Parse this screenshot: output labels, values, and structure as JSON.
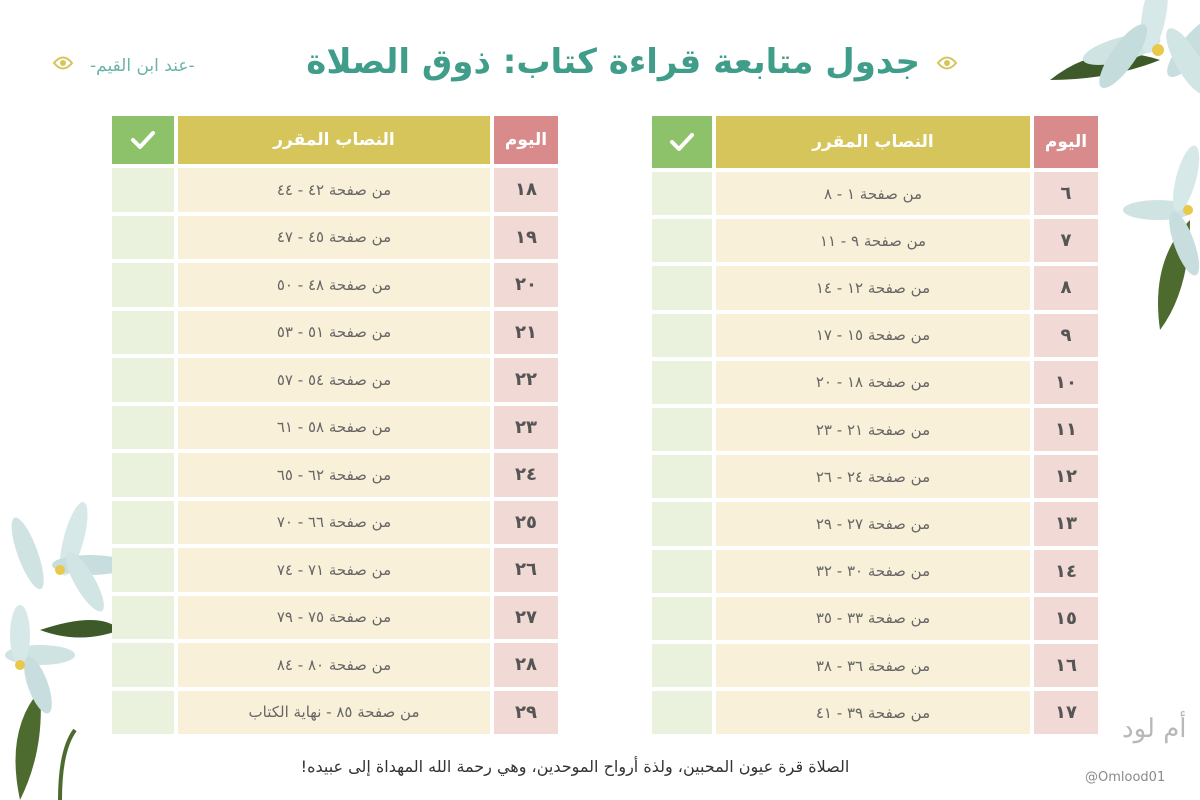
{
  "header": {
    "title": "جدول متابعة قراءة كتاب: ذوق الصلاة",
    "subtitle": "-عند ابن القيم-"
  },
  "columns": {
    "day": "اليوم",
    "task": "النصاب المقرر",
    "check_icon": "checkmark-icon"
  },
  "table_right": [
    {
      "day": "٦",
      "task": "من صفحة ١ - ٨"
    },
    {
      "day": "٧",
      "task": "من صفحة ٩ - ١١"
    },
    {
      "day": "٨",
      "task": "من صفحة ١٢ - ١٤"
    },
    {
      "day": "٩",
      "task": "من صفحة ١٥ - ١٧"
    },
    {
      "day": "١٠",
      "task": "من صفحة ١٨ - ٢٠"
    },
    {
      "day": "١١",
      "task": "من صفحة ٢١ - ٢٣"
    },
    {
      "day": "١٢",
      "task": "من صفحة ٢٤ - ٢٦"
    },
    {
      "day": "١٣",
      "task": "من صفحة ٢٧ - ٢٩"
    },
    {
      "day": "١٤",
      "task": "من صفحة ٣٠ - ٣٢"
    },
    {
      "day": "١٥",
      "task": "من صفحة ٣٣ - ٣٥"
    },
    {
      "day": "١٦",
      "task": "من صفحة ٣٦ - ٣٨"
    },
    {
      "day": "١٧",
      "task": "من صفحة ٣٩ - ٤١"
    }
  ],
  "table_left": [
    {
      "day": "١٨",
      "task": "من صفحة ٤٢ - ٤٤"
    },
    {
      "day": "١٩",
      "task": "من صفحة ٤٥ - ٤٧"
    },
    {
      "day": "٢٠",
      "task": "من صفحة ٤٨ - ٥٠"
    },
    {
      "day": "٢١",
      "task": "من صفحة ٥١ - ٥٣"
    },
    {
      "day": "٢٢",
      "task": "من صفحة ٥٤ - ٥٧"
    },
    {
      "day": "٢٣",
      "task": "من صفحة ٥٨ - ٦١"
    },
    {
      "day": "٢٤",
      "task": "من صفحة ٦٢ - ٦٥"
    },
    {
      "day": "٢٥",
      "task": "من صفحة ٦٦ - ٧٠"
    },
    {
      "day": "٢٦",
      "task": "من صفحة ٧١ - ٧٤"
    },
    {
      "day": "٢٧",
      "task": "من صفحة ٧٥ - ٧٩"
    },
    {
      "day": "٢٨",
      "task": "من صفحة ٨٠ - ٨٤"
    },
    {
      "day": "٢٩",
      "task": "من صفحة ٨٥ - نهاية الكتاب"
    }
  ],
  "footer": {
    "quote": "الصلاة قرة عيون المحبين، ولذة أرواح الموحدين، وهي رحمة الله المهداة إلى عبيده!",
    "handle": "@Omlood01",
    "signature": "أم لود"
  },
  "colors": {
    "title": "#3f9d8a",
    "header_day": "#d98b8b",
    "header_task": "#d6c55b",
    "header_check": "#8dc16a",
    "cell_day": "#f1d9d6",
    "cell_task": "#f8f0d8",
    "cell_check": "#eaf1dc"
  }
}
